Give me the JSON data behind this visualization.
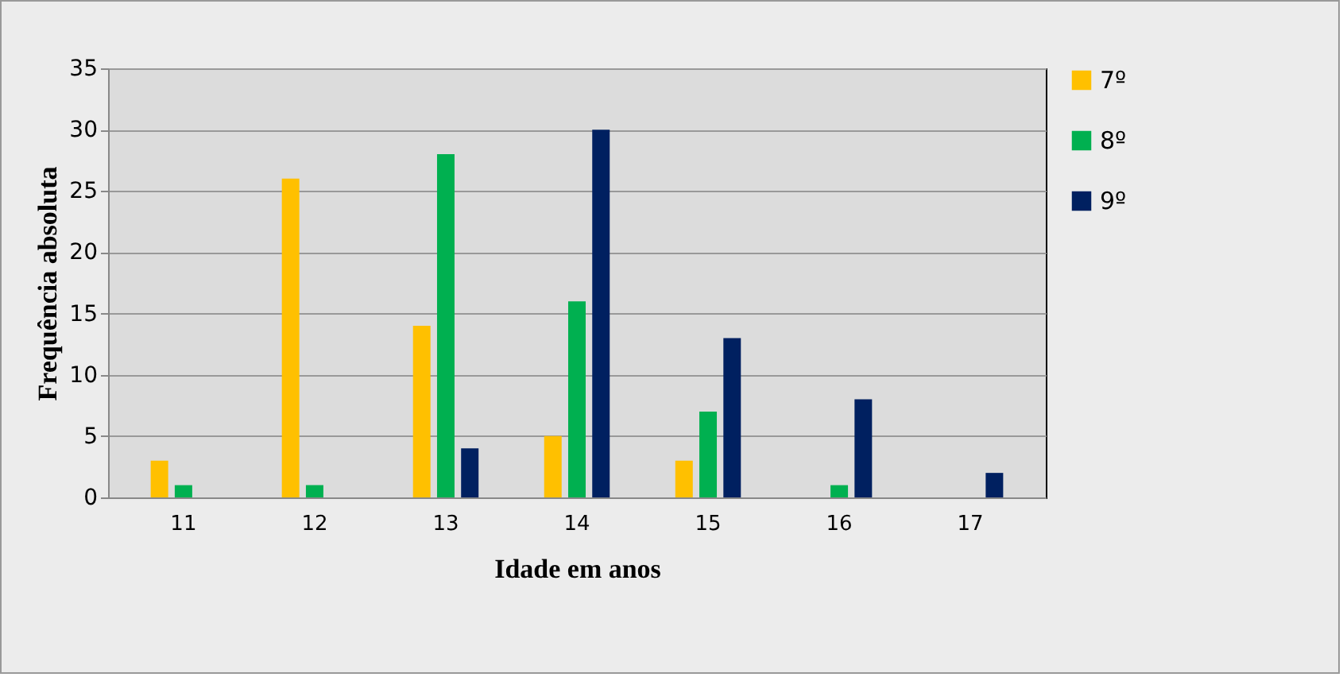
{
  "chart_data": {
    "type": "bar",
    "xlabel": "Idade em anos",
    "ylabel": "Frequência absoluta",
    "categories": [
      "11",
      "12",
      "13",
      "14",
      "15",
      "16",
      "17"
    ],
    "series": [
      {
        "name": "7º",
        "color": "#ffc000",
        "values": [
          3,
          26,
          14,
          5,
          3,
          0,
          0
        ]
      },
      {
        "name": "8º",
        "color": "#00b050",
        "values": [
          1,
          1,
          28,
          16,
          7,
          1,
          0
        ]
      },
      {
        "name": "9º",
        "color": "#002060",
        "values": [
          0,
          0,
          4,
          30,
          13,
          8,
          2
        ]
      }
    ],
    "ylim": [
      0,
      35
    ],
    "yticks": [
      0,
      5,
      10,
      15,
      20,
      25,
      30,
      35
    ],
    "grid": "y",
    "legend": "right"
  }
}
